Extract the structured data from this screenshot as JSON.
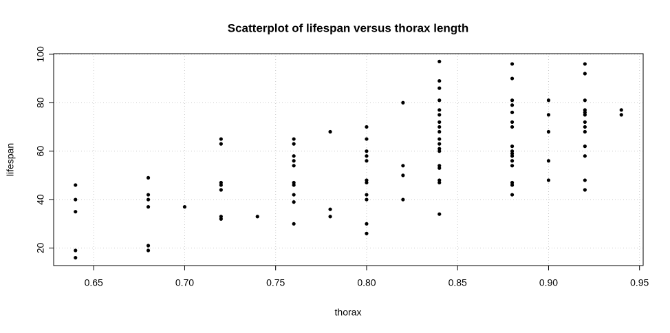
{
  "chart_data": {
    "type": "scatter",
    "title": "Scatterplot of lifespan versus thorax length",
    "x_label": "thorax",
    "y_label": "lifespan",
    "xlim": [
      0.628,
      0.952
    ],
    "ylim": [
      12.76,
      100.24
    ],
    "xticks": [
      0.65,
      {
        "value": 0.7,
        "label": "0.70"
      },
      0.75,
      {
        "value": 0.8,
        "label": "0.80"
      },
      0.85,
      {
        "value": 0.9,
        "label": "0.90"
      },
      0.95
    ],
    "yticks": [
      20,
      40,
      60,
      80,
      100
    ],
    "grid": true,
    "color": "#000000",
    "x": [
      0.64,
      0.64,
      0.64,
      0.64,
      0.64,
      0.68,
      0.68,
      0.68,
      0.68,
      0.68,
      0.68,
      0.7,
      0.72,
      0.72,
      0.72,
      0.72,
      0.72,
      0.72,
      0.72,
      0.74,
      0.76,
      0.76,
      0.76,
      0.76,
      0.76,
      0.76,
      0.76,
      0.76,
      0.76,
      0.76,
      0.78,
      0.78,
      0.78,
      0.8,
      0.8,
      0.8,
      0.8,
      0.8,
      0.8,
      0.8,
      0.8,
      0.8,
      0.8,
      0.8,
      0.82,
      0.82,
      0.82,
      0.82,
      0.84,
      0.84,
      0.84,
      0.84,
      0.84,
      0.84,
      0.84,
      0.84,
      0.84,
      0.84,
      0.84,
      0.84,
      0.84,
      0.84,
      0.84,
      0.84,
      0.84,
      0.84,
      0.88,
      0.88,
      0.88,
      0.88,
      0.88,
      0.88,
      0.88,
      0.88,
      0.88,
      0.88,
      0.88,
      0.88,
      0.88,
      0.88,
      0.88,
      0.88,
      0.9,
      0.9,
      0.9,
      0.9,
      0.9,
      0.92,
      0.92,
      0.92,
      0.92,
      0.92,
      0.92,
      0.92,
      0.92,
      0.92,
      0.92,
      0.92,
      0.92,
      0.92,
      0.94,
      0.94
    ],
    "y": [
      46,
      40,
      35,
      19,
      16,
      49,
      42,
      40,
      37,
      21,
      19,
      37,
      65,
      63,
      47,
      46,
      44,
      33,
      32,
      33,
      65,
      63,
      58,
      56,
      54,
      47,
      46,
      42,
      39,
      30,
      68,
      36,
      33,
      70,
      65,
      60,
      58,
      56,
      48,
      47,
      42,
      40,
      30,
      26,
      80,
      54,
      50,
      40,
      97,
      89,
      86,
      81,
      77,
      75,
      72,
      70,
      68,
      65,
      63,
      61,
      60,
      54,
      53,
      48,
      47,
      34,
      96,
      90,
      81,
      79,
      76,
      72,
      70,
      62,
      60,
      59,
      58,
      56,
      54,
      47,
      46,
      42,
      81,
      75,
      68,
      56,
      48,
      96,
      92,
      81,
      77,
      76,
      75,
      72,
      70,
      68,
      62,
      58,
      48,
      44,
      77,
      75
    ]
  }
}
